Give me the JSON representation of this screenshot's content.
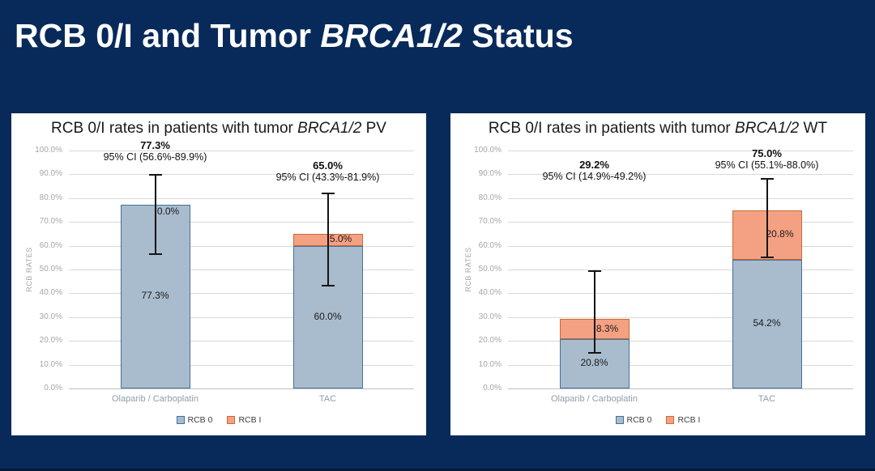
{
  "slide": {
    "title": {
      "pre": "RCB 0/I and Tumor ",
      "italic": "BRCA1/2",
      "post": " Status"
    },
    "background_color": "#082a5a",
    "title_color": "#ffffff"
  },
  "chart_data": [
    {
      "type": "bar",
      "stacked": true,
      "title": {
        "pre": "RCB 0/I rates in patients with tumor ",
        "italic": "BRCA1/2",
        "post": " PV"
      },
      "ylabel": "RCB RATES",
      "xlabel": "",
      "ylim": [
        0,
        100
      ],
      "ytick_step": 10,
      "ytick_labels": [
        "0.0%",
        "10.0%",
        "20.0%",
        "30.0%",
        "40.0%",
        "50.0%",
        "60.0%",
        "70.0%",
        "80.0%",
        "90.0%",
        "100.0%"
      ],
      "grid": true,
      "legend_position": "bottom",
      "categories": [
        "Olaparib / Carboplatin",
        "TAC"
      ],
      "series": [
        {
          "name": "RCB 0",
          "values": [
            77.3,
            60.0
          ],
          "labels": [
            "77.3%",
            "60.0%"
          ],
          "color": "#a9bccd",
          "border": "#41719c"
        },
        {
          "name": "RCB I",
          "values": [
            0.0,
            5.0
          ],
          "labels": [
            "0.0%",
            "5.0%"
          ],
          "color": "#f4a183",
          "border": "#c96a33"
        }
      ],
      "totals": [
        "77.3%",
        "65.0%"
      ],
      "ci_labels": [
        "95% CI (56.6%-89.9%)",
        "95% CI (43.3%-81.9%)"
      ],
      "error_bars": [
        {
          "low": 56.6,
          "high": 89.9
        },
        {
          "low": 43.3,
          "high": 81.9
        }
      ],
      "ann_y": [
        94.5,
        86
      ]
    },
    {
      "type": "bar",
      "stacked": true,
      "title": {
        "pre": "RCB 0/I rates in patients with tumor ",
        "italic": "BRCA1/2",
        "post": " WT"
      },
      "ylabel": "RCB RATES",
      "xlabel": "",
      "ylim": [
        0,
        100
      ],
      "ytick_step": 10,
      "ytick_labels": [
        "0.0%",
        "10.0%",
        "20.0%",
        "30.0%",
        "40.0%",
        "50.0%",
        "60.0%",
        "70.0%",
        "80.0%",
        "90.0%",
        "100.0%"
      ],
      "grid": true,
      "legend_position": "bottom",
      "categories": [
        "Olaparib / Carboplatin",
        "TAC"
      ],
      "series": [
        {
          "name": "RCB 0",
          "values": [
            20.8,
            54.2
          ],
          "labels": [
            "20.8%",
            "54.2%"
          ],
          "color": "#a9bccd",
          "border": "#41719c"
        },
        {
          "name": "RCB I",
          "values": [
            8.3,
            20.8
          ],
          "labels": [
            "8.3%",
            "20.8%"
          ],
          "color": "#f4a183",
          "border": "#c96a33"
        }
      ],
      "totals": [
        "29.2%",
        "75.0%"
      ],
      "ci_labels": [
        "95% CI (14.9%-49.2%)",
        "95% CI (55.1%-88.0%)"
      ],
      "error_bars": [
        {
          "low": 14.9,
          "high": 49.2
        },
        {
          "low": 55.1,
          "high": 88.0
        }
      ],
      "ann_y": [
        86.5,
        91
      ]
    }
  ]
}
